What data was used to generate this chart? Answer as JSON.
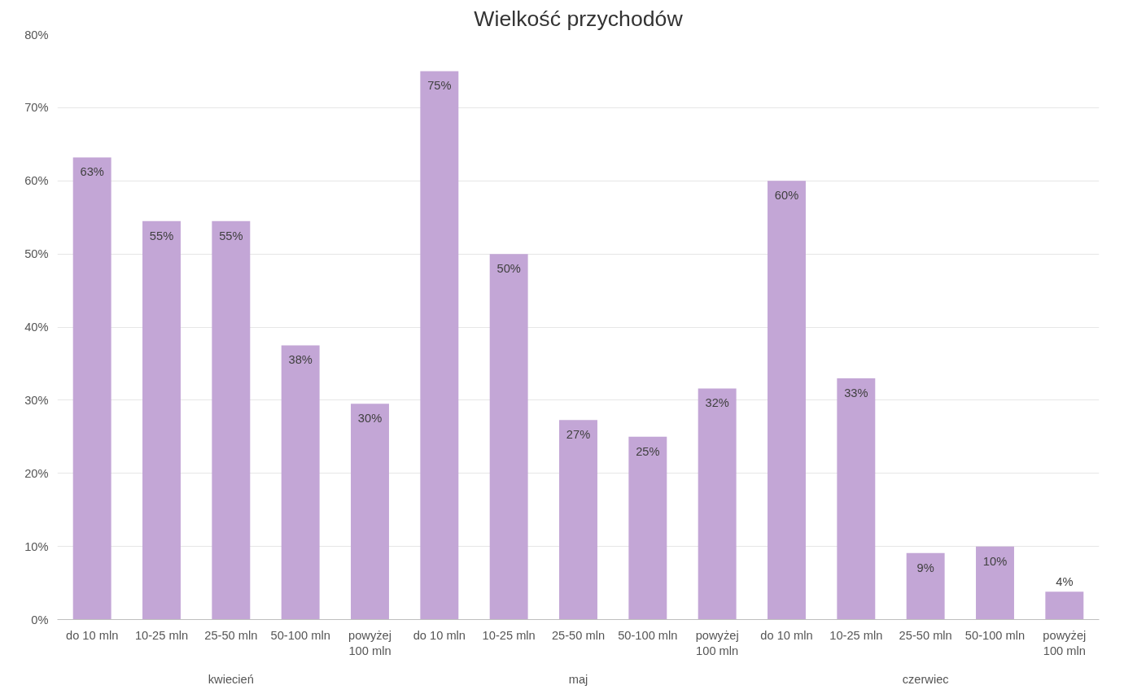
{
  "chart_data": {
    "type": "bar",
    "title": "Wielkość przychodów",
    "categories": [
      "do 10 mln",
      "10-25 mln",
      "25-50 mln",
      "50-100 mln",
      "powyżej 100 mln",
      "do 10 mln",
      "10-25 mln",
      "25-50 mln",
      "50-100 mln",
      "powyżej 100 mln",
      "do 10 mln",
      "10-25 mln",
      "25-50 mln",
      "50-100 mln",
      "powyżej 100 mln"
    ],
    "values": [
      63.2,
      54.5,
      54.5,
      37.5,
      29.5,
      75,
      50,
      27.3,
      25,
      31.6,
      60,
      33,
      9.1,
      10,
      3.8
    ],
    "value_labels": [
      "63%",
      "55%",
      "55%",
      "38%",
      "30%",
      "75%",
      "50%",
      "27%",
      "25%",
      "32%",
      "60%",
      "33%",
      "9%",
      "10%",
      "4%"
    ],
    "color": "#c3a6d6",
    "annotations": [
      "kwiecień",
      "maj",
      "czerwiec"
    ],
    "ylim": [
      0,
      80
    ],
    "yticks": [
      {
        "value": 0,
        "label": "0%"
      },
      {
        "value": 10,
        "label": "10%"
      },
      {
        "value": 20,
        "label": "20%"
      },
      {
        "value": 30,
        "label": "30%"
      },
      {
        "value": 40,
        "label": "40%"
      },
      {
        "value": 50,
        "label": "50%"
      },
      {
        "value": 60,
        "label": "60%"
      },
      {
        "value": 70,
        "label": "70%"
      },
      {
        "value": 80,
        "label": "80%"
      }
    ],
    "grid": "y"
  }
}
